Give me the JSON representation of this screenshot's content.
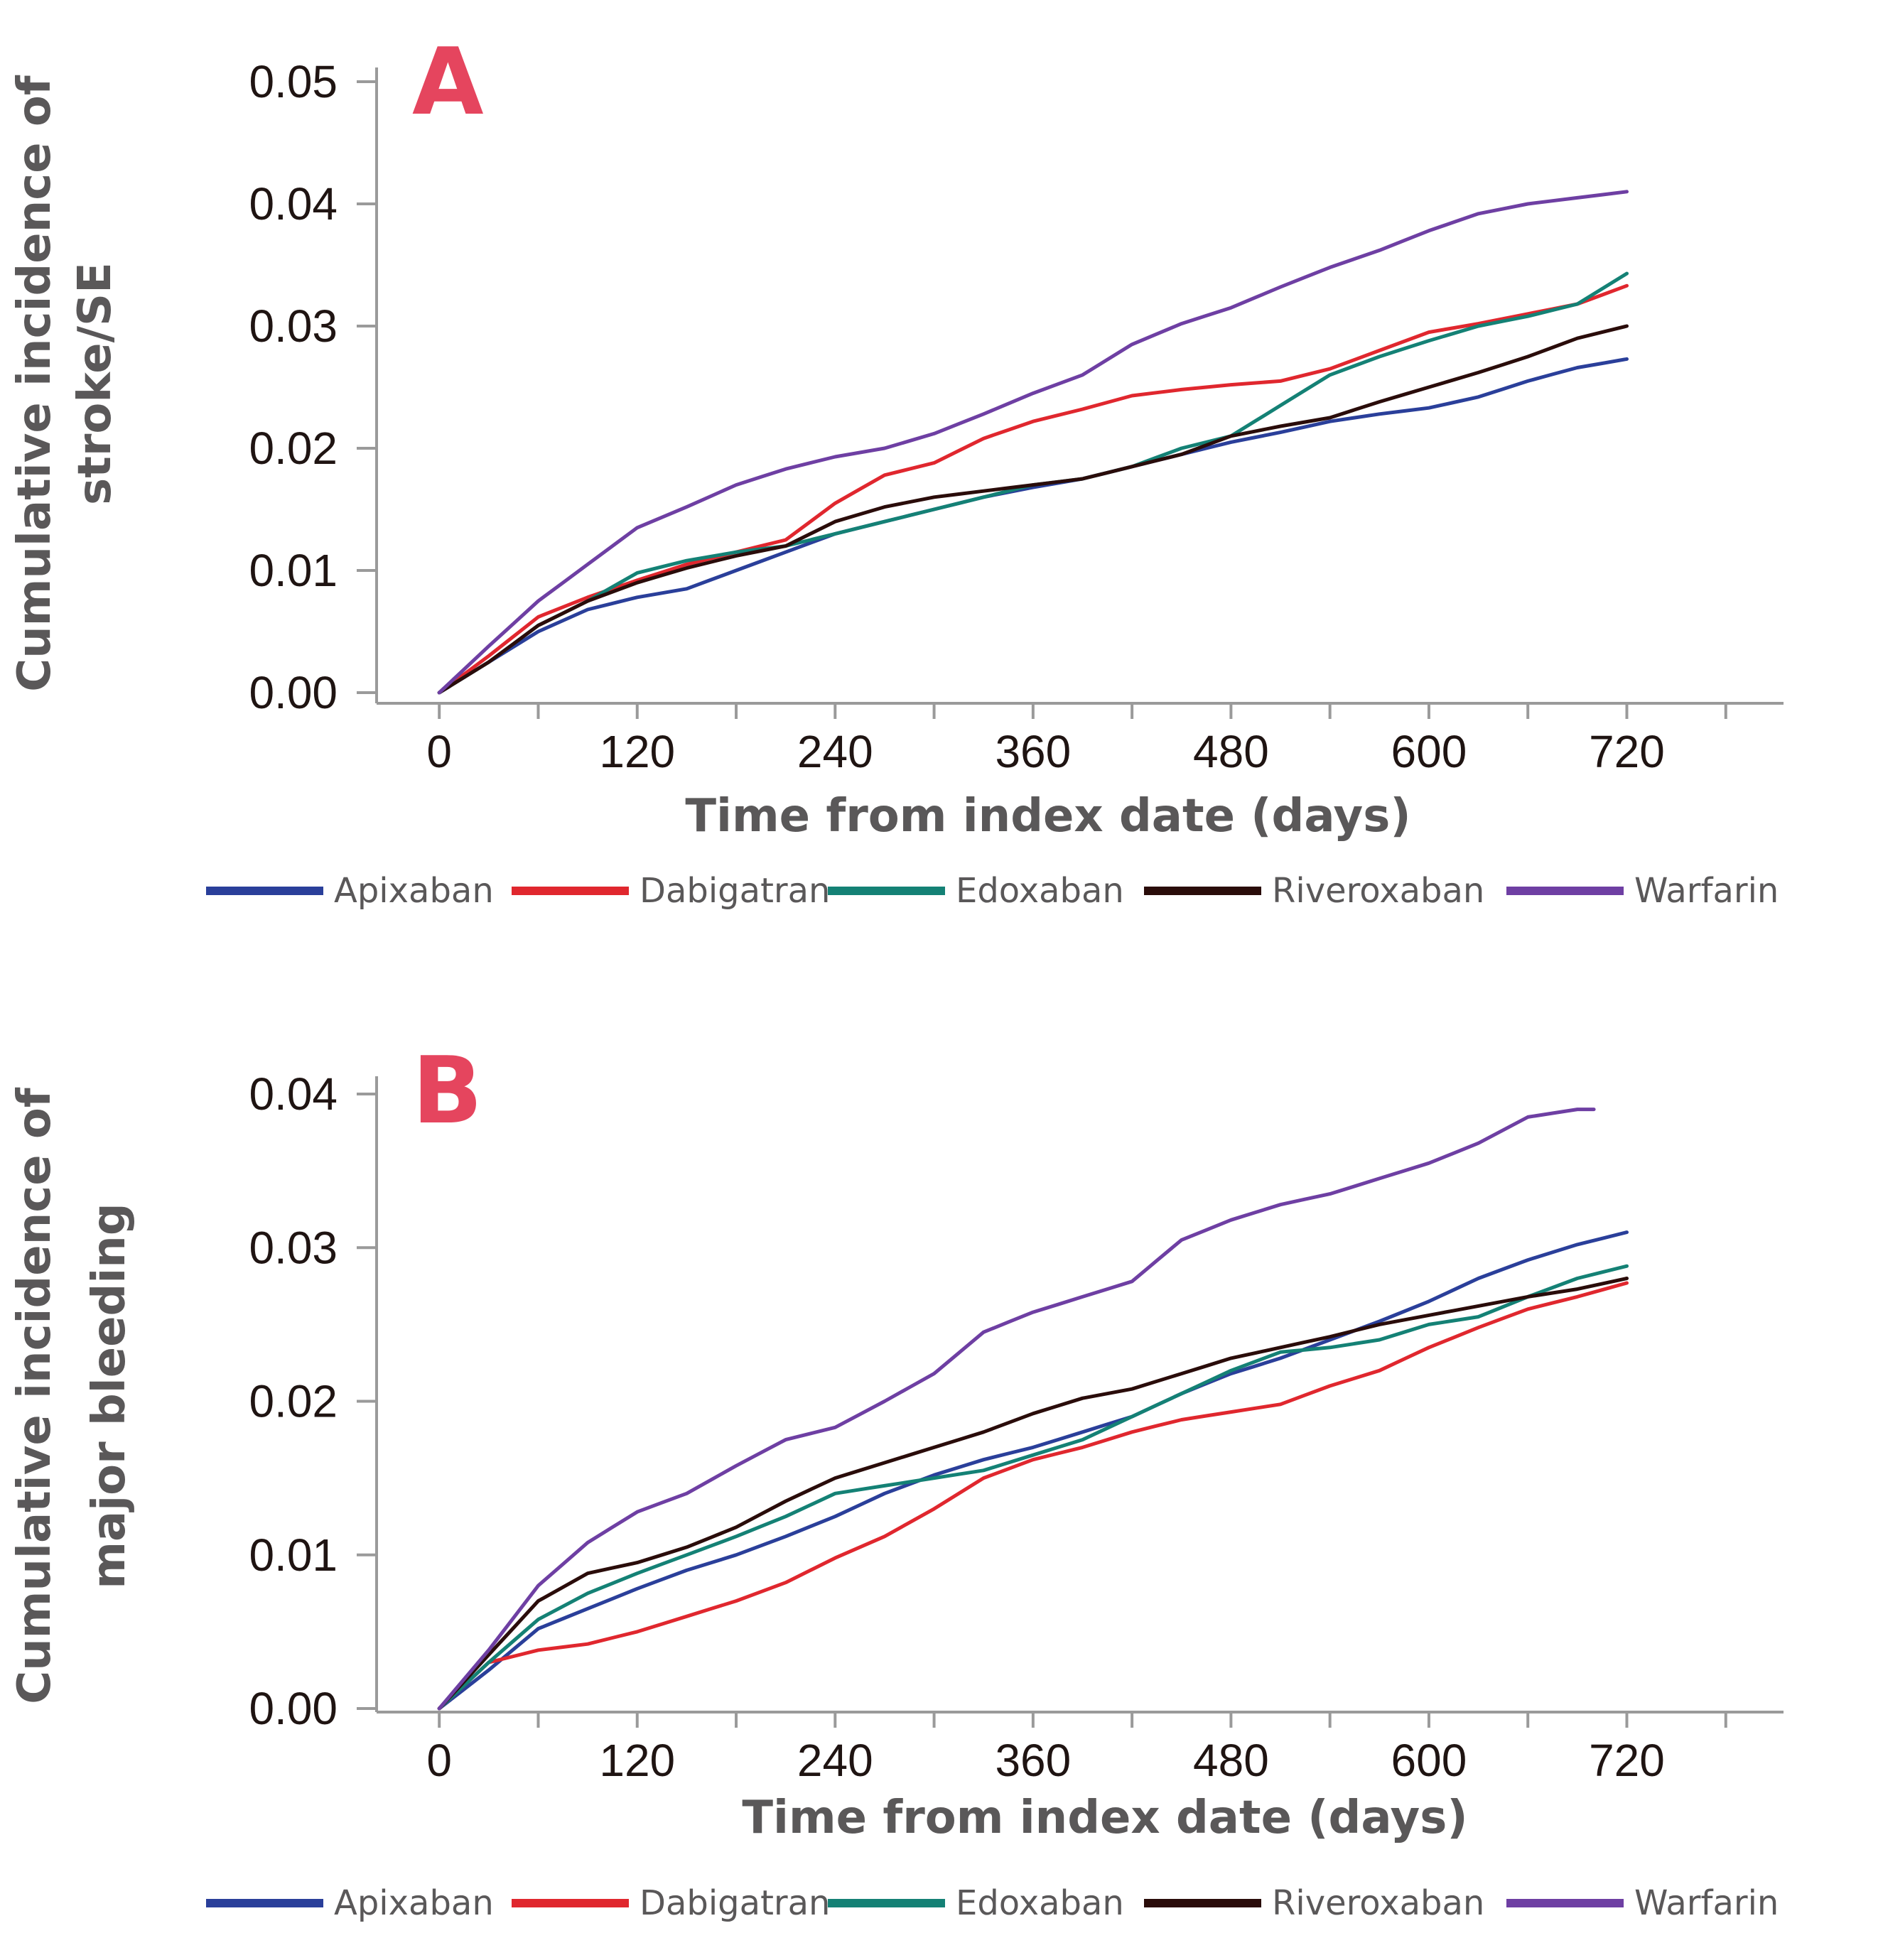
{
  "chart_data": [
    {
      "type": "line",
      "panel_label": "A",
      "xlabel": "Time from index date (days)",
      "ylabel_lines": [
        "Cumulative incidence of",
        "stroke/SE"
      ],
      "x_ticks": [
        0,
        120,
        240,
        360,
        480,
        600,
        720
      ],
      "y_ticks": [
        "0.00",
        "0.01",
        "0.02",
        "0.03",
        "0.04",
        "0.05"
      ],
      "xlim": [
        -38,
        815
      ],
      "ylim": [
        0,
        0.05
      ],
      "legend_position": "bottom",
      "series": [
        {
          "name": "Apixaban",
          "color": "#2a3f9a",
          "x": [
            0,
            30,
            60,
            90,
            120,
            150,
            180,
            210,
            240,
            270,
            300,
            330,
            360,
            390,
            420,
            450,
            480,
            510,
            540,
            570,
            600,
            630,
            660,
            690,
            720
          ],
          "y": [
            0,
            0.0025,
            0.005,
            0.0068,
            0.0078,
            0.0085,
            0.01,
            0.0115,
            0.013,
            0.014,
            0.015,
            0.016,
            0.0168,
            0.0175,
            0.0185,
            0.0195,
            0.0205,
            0.0213,
            0.0222,
            0.0228,
            0.0233,
            0.0242,
            0.0255,
            0.0266,
            0.0273
          ]
        },
        {
          "name": "Dabigatran",
          "color": "#e0272e",
          "x": [
            0,
            30,
            60,
            90,
            120,
            150,
            180,
            210,
            240,
            270,
            300,
            330,
            360,
            390,
            420,
            450,
            480,
            510,
            540,
            570,
            600,
            630,
            660,
            690,
            720
          ],
          "y": [
            0,
            0.003,
            0.0062,
            0.0078,
            0.0092,
            0.0105,
            0.0115,
            0.0125,
            0.0155,
            0.0178,
            0.0188,
            0.0208,
            0.0222,
            0.0232,
            0.0243,
            0.0248,
            0.0252,
            0.0255,
            0.0265,
            0.028,
            0.0295,
            0.0302,
            0.031,
            0.0318,
            0.0333
          ]
        },
        {
          "name": "Edoxaban",
          "color": "#148175",
          "x": [
            0,
            30,
            60,
            90,
            120,
            150,
            180,
            210,
            240,
            270,
            300,
            330,
            360,
            390,
            420,
            450,
            480,
            510,
            540,
            570,
            600,
            630,
            660,
            690,
            720
          ],
          "y": [
            0,
            0.0025,
            0.0055,
            0.0075,
            0.0098,
            0.0108,
            0.0115,
            0.012,
            0.013,
            0.014,
            0.015,
            0.016,
            0.017,
            0.0175,
            0.0185,
            0.02,
            0.021,
            0.0235,
            0.026,
            0.0275,
            0.0288,
            0.03,
            0.0308,
            0.0318,
            0.0343
          ]
        },
        {
          "name": "Riveroxaban",
          "color": "#2a0c0a",
          "x": [
            0,
            30,
            60,
            90,
            120,
            150,
            180,
            210,
            240,
            270,
            300,
            330,
            360,
            390,
            420,
            450,
            480,
            510,
            540,
            570,
            600,
            630,
            660,
            690,
            720
          ],
          "y": [
            0,
            0.0025,
            0.0055,
            0.0075,
            0.009,
            0.0102,
            0.0112,
            0.012,
            0.014,
            0.0152,
            0.016,
            0.0165,
            0.017,
            0.0175,
            0.0185,
            0.0195,
            0.021,
            0.0218,
            0.0225,
            0.0238,
            0.025,
            0.0262,
            0.0275,
            0.029,
            0.03
          ]
        },
        {
          "name": "Warfarin",
          "color": "#6e3fa3",
          "x": [
            0,
            30,
            60,
            90,
            120,
            150,
            180,
            210,
            240,
            270,
            300,
            330,
            360,
            390,
            420,
            450,
            480,
            510,
            540,
            570,
            600,
            630,
            660,
            690,
            720
          ],
          "y": [
            0,
            0.0038,
            0.0075,
            0.0105,
            0.0135,
            0.0152,
            0.017,
            0.0183,
            0.0193,
            0.02,
            0.0212,
            0.0228,
            0.0245,
            0.026,
            0.0285,
            0.0302,
            0.0315,
            0.0332,
            0.0348,
            0.0362,
            0.0378,
            0.0392,
            0.04,
            0.0405,
            0.041
          ]
        }
      ],
      "legend": [
        "Apixaban",
        "Dabigatran",
        "Edoxaban",
        "Riveroxaban",
        "Warfarin"
      ]
    },
    {
      "type": "line",
      "panel_label": "B",
      "xlabel": "Time from index date (days)",
      "ylabel_lines": [
        "Cumulative incidence of",
        "major bleeding"
      ],
      "x_ticks": [
        0,
        120,
        240,
        360,
        480,
        600,
        720
      ],
      "y_ticks": [
        "0.00",
        "0.01",
        "0.02",
        "0.03",
        "0.04"
      ],
      "xlim": [
        -38,
        815
      ],
      "ylim": [
        0,
        0.04
      ],
      "legend_position": "bottom",
      "series": [
        {
          "name": "Apixaban",
          "color": "#2a3f9a",
          "x": [
            0,
            30,
            60,
            90,
            120,
            150,
            180,
            210,
            240,
            270,
            300,
            330,
            360,
            390,
            420,
            450,
            480,
            510,
            540,
            570,
            600,
            630,
            660,
            690,
            720
          ],
          "y": [
            0,
            0.0025,
            0.0052,
            0.0065,
            0.0078,
            0.009,
            0.01,
            0.0112,
            0.0125,
            0.014,
            0.0152,
            0.0162,
            0.017,
            0.018,
            0.019,
            0.0205,
            0.0218,
            0.0228,
            0.024,
            0.0252,
            0.0265,
            0.028,
            0.0292,
            0.0302,
            0.031
          ]
        },
        {
          "name": "Dabigatran",
          "color": "#e0272e",
          "x": [
            0,
            30,
            60,
            90,
            120,
            150,
            180,
            210,
            240,
            270,
            300,
            330,
            360,
            390,
            420,
            450,
            480,
            510,
            540,
            570,
            600,
            630,
            660,
            690,
            720
          ],
          "y": [
            0,
            0.003,
            0.0038,
            0.0042,
            0.005,
            0.006,
            0.007,
            0.0082,
            0.0098,
            0.0112,
            0.013,
            0.015,
            0.0162,
            0.017,
            0.018,
            0.0188,
            0.0193,
            0.0198,
            0.021,
            0.022,
            0.0235,
            0.0248,
            0.026,
            0.0268,
            0.0277
          ]
        },
        {
          "name": "Edoxaban",
          "color": "#148175",
          "x": [
            0,
            30,
            60,
            90,
            120,
            150,
            180,
            210,
            240,
            270,
            300,
            330,
            360,
            390,
            420,
            450,
            480,
            510,
            540,
            570,
            600,
            630,
            660,
            690,
            720
          ],
          "y": [
            0,
            0.003,
            0.0058,
            0.0075,
            0.0088,
            0.01,
            0.0112,
            0.0125,
            0.014,
            0.0145,
            0.015,
            0.0155,
            0.0165,
            0.0175,
            0.019,
            0.0205,
            0.022,
            0.0232,
            0.0235,
            0.024,
            0.025,
            0.0255,
            0.0268,
            0.028,
            0.0288
          ]
        },
        {
          "name": "Riveroxaban",
          "color": "#2a0c0a",
          "x": [
            0,
            30,
            60,
            90,
            120,
            150,
            180,
            210,
            240,
            270,
            300,
            330,
            360,
            390,
            420,
            450,
            480,
            510,
            540,
            570,
            600,
            630,
            660,
            690,
            720
          ],
          "y": [
            0,
            0.0035,
            0.007,
            0.0088,
            0.0095,
            0.0105,
            0.0118,
            0.0135,
            0.015,
            0.016,
            0.017,
            0.018,
            0.0192,
            0.0202,
            0.0208,
            0.0218,
            0.0228,
            0.0235,
            0.0242,
            0.025,
            0.0256,
            0.0262,
            0.0268,
            0.0273,
            0.028
          ]
        },
        {
          "name": "Warfarin",
          "color": "#6e3fa3",
          "x": [
            0,
            30,
            60,
            90,
            120,
            150,
            180,
            210,
            240,
            270,
            300,
            330,
            360,
            390,
            420,
            450,
            480,
            510,
            540,
            570,
            600,
            630,
            660,
            690,
            700
          ],
          "y": [
            0,
            0.0038,
            0.008,
            0.0108,
            0.0128,
            0.014,
            0.0158,
            0.0175,
            0.0183,
            0.02,
            0.0218,
            0.0245,
            0.0258,
            0.0268,
            0.0278,
            0.0305,
            0.0318,
            0.0328,
            0.0335,
            0.0345,
            0.0355,
            0.0368,
            0.0385,
            0.039,
            0.039
          ]
        }
      ],
      "legend": [
        "Apixaban",
        "Dabigatran",
        "Edoxaban",
        "Riveroxaban",
        "Warfarin"
      ]
    }
  ]
}
